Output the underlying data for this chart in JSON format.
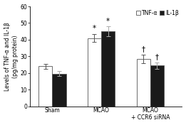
{
  "categories": [
    "Sham",
    "MCAO",
    "MCAO\n+ CCR6 siRNA"
  ],
  "tnf_values": [
    24.0,
    41.0,
    28.5
  ],
  "il1b_values": [
    19.5,
    45.0,
    24.5
  ],
  "tnf_errors": [
    1.5,
    2.5,
    2.5
  ],
  "il1b_errors": [
    1.5,
    3.0,
    2.0
  ],
  "tnf_color": "#ffffff",
  "il1b_color": "#1a1a1a",
  "bar_edge_color": "#555555",
  "ylabel": "Levels of TNF-α and IL-1β\n(pg/mg protein)",
  "ylim": [
    0,
    60
  ],
  "yticks": [
    0,
    10,
    20,
    30,
    40,
    50,
    60
  ],
  "legend_labels": [
    "TNF-α",
    "IL-1β"
  ],
  "bar_width": 0.28,
  "group_positions": [
    1,
    2,
    3
  ],
  "significance_mcao": "*",
  "significance_ccr6": "†",
  "sig_fontsize": 7.5,
  "ylabel_fontsize": 5.5,
  "tick_fontsize": 5.5,
  "legend_fontsize": 5.5,
  "error_capsize": 2.0,
  "error_linewidth": 0.7
}
